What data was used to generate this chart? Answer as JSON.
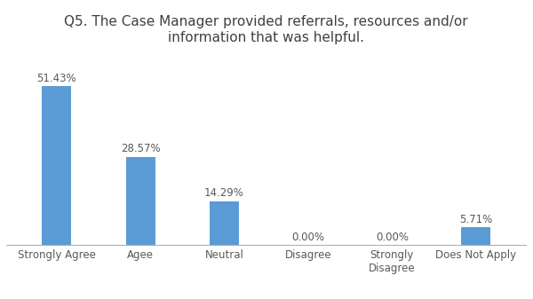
{
  "title": "Q5. The Case Manager provided referrals, resources and/or\ninformation that was helpful.",
  "categories": [
    "Strongly Agree",
    "Agee",
    "Neutral",
    "Disagree",
    "Strongly\nDisagree",
    "Does Not Apply"
  ],
  "values": [
    51.43,
    28.57,
    14.29,
    0.0,
    0.0,
    5.71
  ],
  "labels": [
    "51.43%",
    "28.57%",
    "14.29%",
    "0.00%",
    "0.00%",
    "5.71%"
  ],
  "bar_color": "#5b9bd5",
  "background_color": "#ffffff",
  "ylim": [
    0,
    62
  ],
  "title_fontsize": 11,
  "label_fontsize": 8.5,
  "tick_fontsize": 8.5,
  "bar_width": 0.35
}
